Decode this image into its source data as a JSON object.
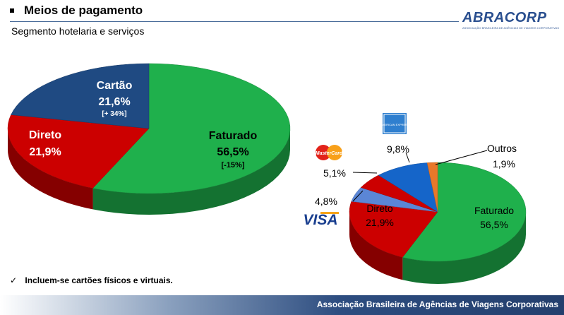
{
  "header": {
    "title": "Meios de pagamento",
    "subtitle": "Segmento hotelaria e serviços"
  },
  "logo": {
    "text": "ABRACORP",
    "subtext": "ASSOCIAÇÃO BRASILEIRA DE AGÊNCIAS DE VIAGENS CORPORATIVAS"
  },
  "chart_data": [
    {
      "type": "pie",
      "title": "",
      "slices": [
        {
          "name": "Faturado",
          "value": 56.5,
          "value_label": "56,5%",
          "change": "[-15%]",
          "color": "#1fb04c"
        },
        {
          "name": "Direto",
          "value": 21.9,
          "value_label": "21,9%",
          "change": "",
          "color": "#cc0000"
        },
        {
          "name": "Cartão",
          "value": 21.6,
          "value_label": "21,6%",
          "change": "[+ 34%]",
          "color": "#1f4a82"
        }
      ]
    },
    {
      "type": "pie",
      "title": "",
      "slices": [
        {
          "name": "Faturado",
          "value": 56.5,
          "value_label": "56,5%",
          "color": "#1fb04c"
        },
        {
          "name": "Direto",
          "value": 21.9,
          "value_label": "21,9%",
          "color": "#cc0000"
        },
        {
          "name": "Visa",
          "value": 4.8,
          "value_label": "4,8%",
          "color": "#5b86d6"
        },
        {
          "name": "MasterCard",
          "value": 5.1,
          "value_label": "5,1%",
          "color": "#cc0000"
        },
        {
          "name": "American Express",
          "value": 9.8,
          "value_label": "9,8%",
          "color": "#1565c9"
        },
        {
          "name": "Outros",
          "value": 1.9,
          "value_label": "1,9%",
          "color": "#e8782a"
        }
      ]
    }
  ],
  "card_logos": {
    "visa": "VISA",
    "mastercard": "MasterCard",
    "amex": "AMERICAN EXPRESS"
  },
  "note": "Incluem-se cartões físicos e virtuais.",
  "footer": "Associação Brasileira de Agências de Viagens Corporativas",
  "colors": {
    "faturado": "#1fb04c",
    "direto": "#cc0000",
    "cartao": "#1f4a82",
    "header_blue": "#2d4d80"
  },
  "icons": {
    "note_marker": "checkmark-icon",
    "title_marker": "square-bullet-icon"
  }
}
